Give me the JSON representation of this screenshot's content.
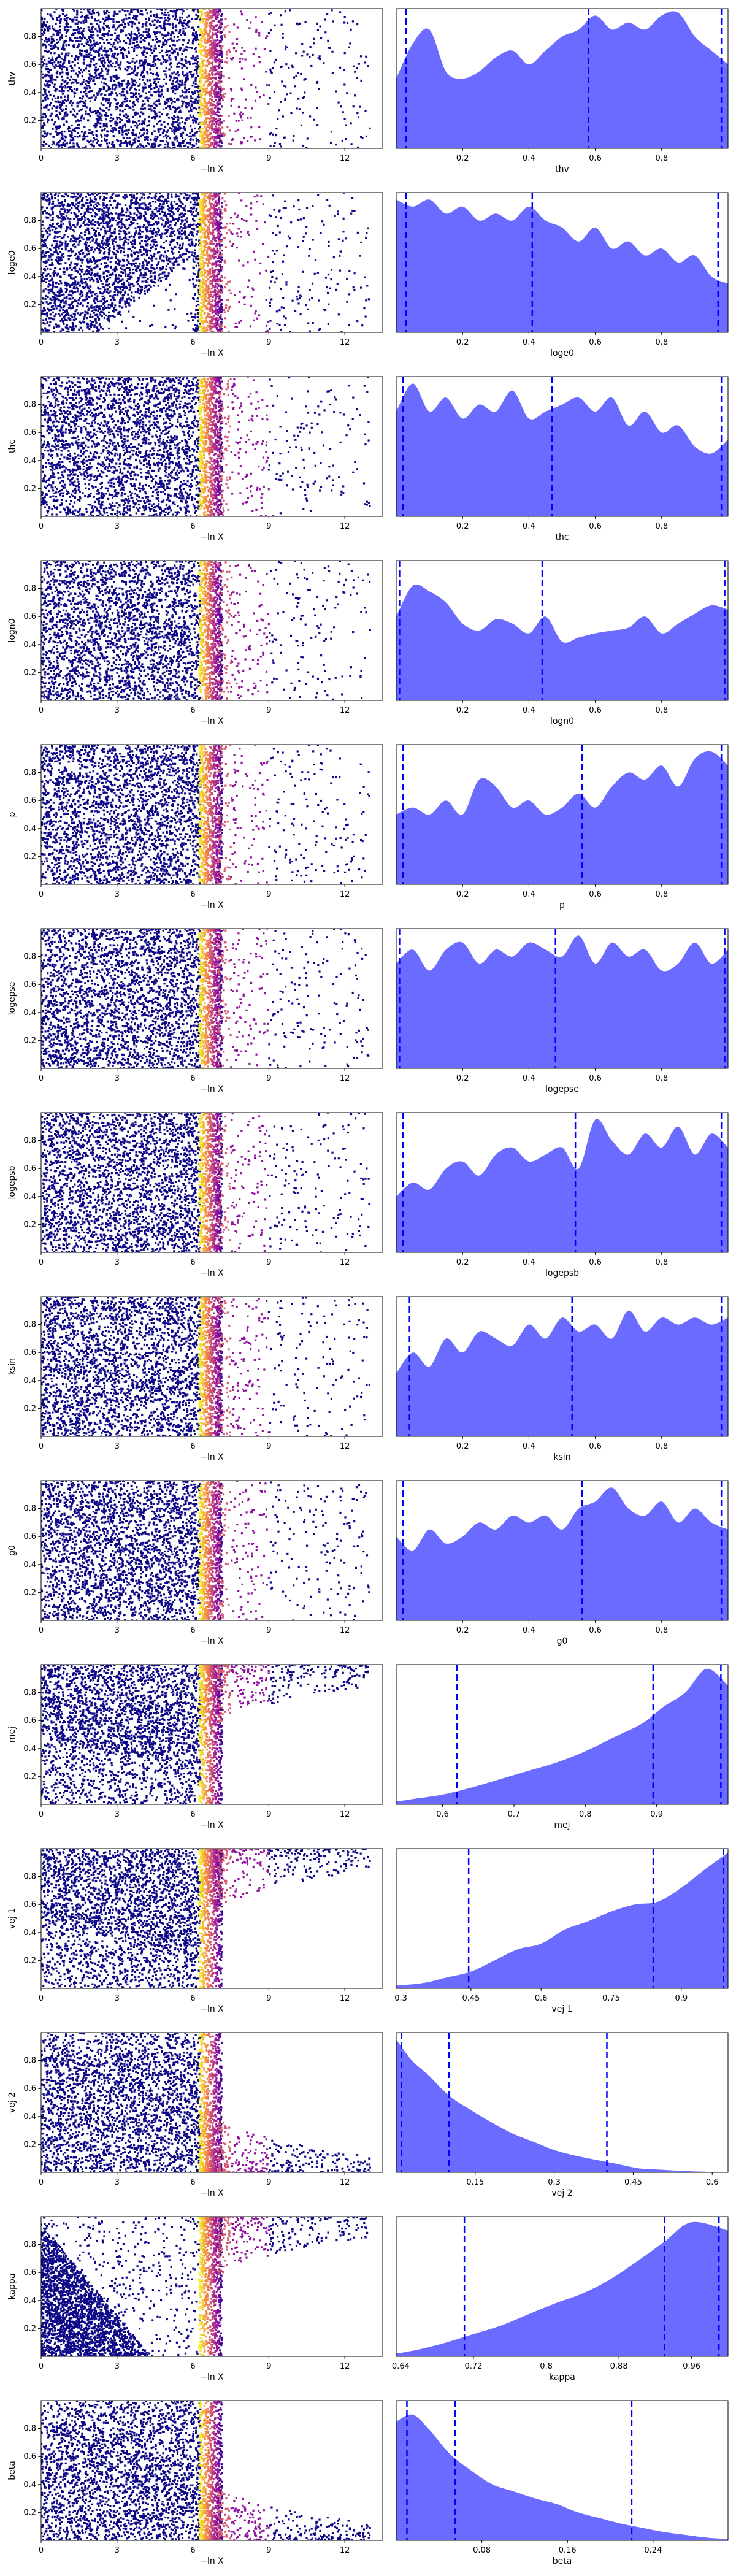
{
  "colors": {
    "scatter_low": "#0d0887",
    "scatter_high": "#f0f921",
    "kde_fill": "#6b6bff",
    "quantile_line": "#0000ff"
  },
  "chart_data": [
    {
      "type": "scatter",
      "xlabel": "−ln X",
      "ylabel": "thv",
      "xticks": [
        0,
        3,
        6,
        9,
        12
      ],
      "yticks": [
        0.2,
        0.4,
        0.6,
        0.8
      ],
      "xlim": [
        0,
        13.5
      ],
      "ylim": [
        0,
        1
      ],
      "pattern": "uniform",
      "colormap": "plasma"
    },
    {
      "type": "area",
      "xlabel": "thv",
      "xticks": [
        0.2,
        0.4,
        0.6,
        0.8
      ],
      "xlim": [
        0,
        1
      ],
      "x": [
        0,
        0.05,
        0.1,
        0.15,
        0.2,
        0.25,
        0.3,
        0.35,
        0.4,
        0.45,
        0.5,
        0.55,
        0.6,
        0.65,
        0.7,
        0.75,
        0.8,
        0.85,
        0.9,
        0.95,
        1
      ],
      "density": [
        0.5,
        0.75,
        0.85,
        0.55,
        0.5,
        0.55,
        0.65,
        0.7,
        0.6,
        0.7,
        0.8,
        0.85,
        0.95,
        0.85,
        0.9,
        0.85,
        0.95,
        0.97,
        0.8,
        0.7,
        0.6
      ],
      "quantiles": [
        0.03,
        0.58,
        0.98
      ]
    },
    {
      "type": "scatter",
      "xlabel": "−ln X",
      "ylabel": "loge0",
      "xticks": [
        0,
        3,
        6,
        9,
        12
      ],
      "yticks": [
        0.2,
        0.4,
        0.6,
        0.8
      ],
      "xlim": [
        0,
        13.5
      ],
      "ylim": [
        0,
        1
      ],
      "pattern": "gap_low",
      "colormap": "plasma"
    },
    {
      "type": "area",
      "xlabel": "loge0",
      "xticks": [
        0.2,
        0.4,
        0.6,
        0.8
      ],
      "xlim": [
        0,
        1
      ],
      "x": [
        0,
        0.05,
        0.1,
        0.15,
        0.2,
        0.25,
        0.3,
        0.35,
        0.4,
        0.45,
        0.5,
        0.55,
        0.6,
        0.65,
        0.7,
        0.75,
        0.8,
        0.85,
        0.9,
        0.95,
        1
      ],
      "density": [
        0.95,
        0.9,
        0.95,
        0.85,
        0.9,
        0.8,
        0.85,
        0.8,
        0.9,
        0.8,
        0.75,
        0.65,
        0.75,
        0.6,
        0.65,
        0.55,
        0.6,
        0.5,
        0.55,
        0.4,
        0.35
      ],
      "quantiles": [
        0.03,
        0.41,
        0.97
      ]
    },
    {
      "type": "scatter",
      "xlabel": "−ln X",
      "ylabel": "thc",
      "xticks": [
        0,
        3,
        6,
        9,
        12
      ],
      "yticks": [
        0.2,
        0.4,
        0.6,
        0.8
      ],
      "xlim": [
        0,
        13.5
      ],
      "ylim": [
        0,
        1
      ],
      "pattern": "uniform",
      "colormap": "plasma"
    },
    {
      "type": "area",
      "xlabel": "thc",
      "xticks": [
        0.2,
        0.4,
        0.6,
        0.8
      ],
      "xlim": [
        0,
        1
      ],
      "x": [
        0,
        0.05,
        0.1,
        0.15,
        0.2,
        0.25,
        0.3,
        0.35,
        0.4,
        0.45,
        0.5,
        0.55,
        0.6,
        0.65,
        0.7,
        0.75,
        0.8,
        0.85,
        0.9,
        0.95,
        1
      ],
      "density": [
        0.75,
        0.95,
        0.75,
        0.85,
        0.7,
        0.8,
        0.75,
        0.9,
        0.7,
        0.75,
        0.8,
        0.85,
        0.75,
        0.85,
        0.65,
        0.75,
        0.6,
        0.65,
        0.5,
        0.45,
        0.55
      ],
      "quantiles": [
        0.02,
        0.47,
        0.98
      ]
    },
    {
      "type": "scatter",
      "xlabel": "−ln X",
      "ylabel": "logn0",
      "xticks": [
        0,
        3,
        6,
        9,
        12
      ],
      "yticks": [
        0.2,
        0.4,
        0.6,
        0.8
      ],
      "xlim": [
        0,
        13.5
      ],
      "ylim": [
        0,
        1
      ],
      "pattern": "uniform",
      "colormap": "plasma"
    },
    {
      "type": "area",
      "xlabel": "logn0",
      "xticks": [
        0.2,
        0.4,
        0.6,
        0.8
      ],
      "xlim": [
        0,
        1
      ],
      "x": [
        0,
        0.05,
        0.1,
        0.15,
        0.2,
        0.25,
        0.3,
        0.35,
        0.4,
        0.45,
        0.5,
        0.55,
        0.6,
        0.65,
        0.7,
        0.75,
        0.8,
        0.85,
        0.9,
        0.95,
        1
      ],
      "density": [
        0.6,
        0.82,
        0.78,
        0.7,
        0.55,
        0.5,
        0.58,
        0.55,
        0.48,
        0.6,
        0.42,
        0.45,
        0.48,
        0.5,
        0.52,
        0.6,
        0.48,
        0.55,
        0.62,
        0.68,
        0.65
      ],
      "quantiles": [
        0.01,
        0.44,
        0.99
      ]
    },
    {
      "type": "scatter",
      "xlabel": "−ln X",
      "ylabel": "p",
      "xticks": [
        0,
        3,
        6,
        9,
        12
      ],
      "yticks": [
        0.2,
        0.4,
        0.6,
        0.8
      ],
      "xlim": [
        0,
        13.5
      ],
      "ylim": [
        0,
        1
      ],
      "pattern": "uniform",
      "colormap": "plasma"
    },
    {
      "type": "area",
      "xlabel": "p",
      "xticks": [
        0.2,
        0.4,
        0.6,
        0.8
      ],
      "xlim": [
        0,
        1
      ],
      "x": [
        0,
        0.05,
        0.1,
        0.15,
        0.2,
        0.25,
        0.3,
        0.35,
        0.4,
        0.45,
        0.5,
        0.55,
        0.6,
        0.65,
        0.7,
        0.75,
        0.8,
        0.85,
        0.9,
        0.95,
        1
      ],
      "density": [
        0.5,
        0.55,
        0.5,
        0.6,
        0.5,
        0.75,
        0.7,
        0.55,
        0.6,
        0.5,
        0.55,
        0.65,
        0.55,
        0.7,
        0.8,
        0.75,
        0.85,
        0.7,
        0.9,
        0.95,
        0.85
      ],
      "quantiles": [
        0.02,
        0.56,
        0.98
      ]
    },
    {
      "type": "scatter",
      "xlabel": "−ln X",
      "ylabel": "logepse",
      "xticks": [
        0,
        3,
        6,
        9,
        12
      ],
      "yticks": [
        0.2,
        0.4,
        0.6,
        0.8
      ],
      "xlim": [
        0,
        13.5
      ],
      "ylim": [
        0,
        1
      ],
      "pattern": "uniform",
      "colormap": "plasma"
    },
    {
      "type": "area",
      "xlabel": "logepse",
      "xticks": [
        0.2,
        0.4,
        0.6,
        0.8
      ],
      "xlim": [
        0,
        1
      ],
      "x": [
        0,
        0.05,
        0.1,
        0.15,
        0.2,
        0.25,
        0.3,
        0.35,
        0.4,
        0.45,
        0.5,
        0.55,
        0.6,
        0.65,
        0.7,
        0.75,
        0.8,
        0.85,
        0.9,
        0.95,
        1
      ],
      "density": [
        0.75,
        0.85,
        0.7,
        0.85,
        0.9,
        0.75,
        0.85,
        0.8,
        0.9,
        0.85,
        0.8,
        0.95,
        0.75,
        0.9,
        0.8,
        0.85,
        0.7,
        0.75,
        0.9,
        0.75,
        0.85
      ],
      "quantiles": [
        0.01,
        0.48,
        0.99
      ]
    },
    {
      "type": "scatter",
      "xlabel": "−ln X",
      "ylabel": "logepsb",
      "xticks": [
        0,
        3,
        6,
        9,
        12
      ],
      "yticks": [
        0.2,
        0.4,
        0.6,
        0.8
      ],
      "xlim": [
        0,
        13.5
      ],
      "ylim": [
        0,
        1
      ],
      "pattern": "uniform",
      "colormap": "plasma"
    },
    {
      "type": "area",
      "xlabel": "logepsb",
      "xticks": [
        0.2,
        0.4,
        0.6,
        0.8
      ],
      "xlim": [
        0,
        1
      ],
      "x": [
        0,
        0.05,
        0.1,
        0.15,
        0.2,
        0.25,
        0.3,
        0.35,
        0.4,
        0.45,
        0.5,
        0.55,
        0.6,
        0.65,
        0.7,
        0.75,
        0.8,
        0.85,
        0.9,
        0.95,
        1
      ],
      "density": [
        0.4,
        0.5,
        0.45,
        0.6,
        0.65,
        0.55,
        0.7,
        0.75,
        0.65,
        0.7,
        0.75,
        0.6,
        0.95,
        0.8,
        0.7,
        0.85,
        0.75,
        0.9,
        0.7,
        0.85,
        0.75
      ],
      "quantiles": [
        0.02,
        0.54,
        0.98
      ]
    },
    {
      "type": "scatter",
      "xlabel": "−ln X",
      "ylabel": "ksin",
      "xticks": [
        0,
        3,
        6,
        9,
        12
      ],
      "yticks": [
        0.2,
        0.4,
        0.6,
        0.8
      ],
      "xlim": [
        0,
        13.5
      ],
      "ylim": [
        0,
        1
      ],
      "pattern": "uniform",
      "colormap": "plasma"
    },
    {
      "type": "area",
      "xlabel": "ksin",
      "xticks": [
        0.2,
        0.4,
        0.6,
        0.8
      ],
      "xlim": [
        0,
        1
      ],
      "x": [
        0,
        0.05,
        0.1,
        0.15,
        0.2,
        0.25,
        0.3,
        0.35,
        0.4,
        0.45,
        0.5,
        0.55,
        0.6,
        0.65,
        0.7,
        0.75,
        0.8,
        0.85,
        0.9,
        0.95,
        1
      ],
      "density": [
        0.45,
        0.6,
        0.5,
        0.7,
        0.6,
        0.75,
        0.7,
        0.65,
        0.8,
        0.7,
        0.85,
        0.75,
        0.8,
        0.7,
        0.9,
        0.75,
        0.85,
        0.8,
        0.85,
        0.8,
        0.85
      ],
      "quantiles": [
        0.04,
        0.53,
        0.98
      ]
    },
    {
      "type": "scatter",
      "xlabel": "−ln X",
      "ylabel": "g0",
      "xticks": [
        0,
        3,
        6,
        9,
        12
      ],
      "yticks": [
        0.2,
        0.4,
        0.6,
        0.8
      ],
      "xlim": [
        0,
        13.5
      ],
      "ylim": [
        0,
        1
      ],
      "pattern": "uniform",
      "colormap": "plasma"
    },
    {
      "type": "area",
      "xlabel": "g0",
      "xticks": [
        0.2,
        0.4,
        0.6,
        0.8
      ],
      "xlim": [
        0,
        1
      ],
      "x": [
        0,
        0.05,
        0.1,
        0.15,
        0.2,
        0.25,
        0.3,
        0.35,
        0.4,
        0.45,
        0.5,
        0.55,
        0.6,
        0.65,
        0.7,
        0.75,
        0.8,
        0.85,
        0.9,
        0.95,
        1
      ],
      "density": [
        0.6,
        0.5,
        0.65,
        0.55,
        0.6,
        0.7,
        0.65,
        0.75,
        0.7,
        0.75,
        0.65,
        0.8,
        0.85,
        0.95,
        0.8,
        0.75,
        0.85,
        0.7,
        0.8,
        0.7,
        0.65
      ],
      "quantiles": [
        0.02,
        0.56,
        0.98
      ]
    },
    {
      "type": "scatter",
      "xlabel": "−ln X",
      "ylabel": "mej",
      "xticks": [
        0,
        3,
        6,
        9,
        12
      ],
      "yticks": [
        0.2,
        0.4,
        0.6,
        0.8
      ],
      "xlim": [
        0,
        13.5
      ],
      "ylim": [
        0,
        1
      ],
      "pattern": "high_tail",
      "colormap": "plasma"
    },
    {
      "type": "area",
      "xlabel": "mej",
      "xticks": [
        0.6,
        0.7,
        0.8,
        0.9
      ],
      "xlim": [
        0.535,
        1.0
      ],
      "x": [
        0.535,
        0.56,
        0.6,
        0.64,
        0.68,
        0.72,
        0.76,
        0.8,
        0.84,
        0.88,
        0.91,
        0.94,
        0.97,
        1.0
      ],
      "density": [
        0.02,
        0.04,
        0.07,
        0.12,
        0.18,
        0.24,
        0.3,
        0.38,
        0.48,
        0.58,
        0.7,
        0.8,
        0.97,
        0.85
      ],
      "quantiles": [
        0.62,
        0.895,
        0.99
      ]
    },
    {
      "type": "scatter",
      "xlabel": "−ln X",
      "ylabel": "vej 1",
      "xticks": [
        0,
        3,
        6,
        9,
        12
      ],
      "yticks": [
        0.2,
        0.4,
        0.6,
        0.8
      ],
      "xlim": [
        0,
        13.5
      ],
      "ylim": [
        0,
        1
      ],
      "pattern": "high_tail",
      "colormap": "plasma"
    },
    {
      "type": "area",
      "xlabel": "vej 1",
      "xticks": [
        0.3,
        0.45,
        0.6,
        0.75,
        0.9
      ],
      "xlim": [
        0.29,
        1.0
      ],
      "x": [
        0.29,
        0.35,
        0.4,
        0.45,
        0.5,
        0.55,
        0.6,
        0.65,
        0.7,
        0.75,
        0.8,
        0.85,
        0.9,
        0.95,
        1.0
      ],
      "density": [
        0.02,
        0.04,
        0.08,
        0.12,
        0.2,
        0.28,
        0.32,
        0.42,
        0.48,
        0.55,
        0.6,
        0.62,
        0.72,
        0.85,
        0.97
      ],
      "quantiles": [
        0.445,
        0.84,
        0.99
      ]
    },
    {
      "type": "scatter",
      "xlabel": "−ln X",
      "ylabel": "vej 2",
      "xticks": [
        0,
        3,
        6,
        9,
        12
      ],
      "yticks": [
        0.2,
        0.4,
        0.6,
        0.8
      ],
      "xlim": [
        0,
        13.5
      ],
      "ylim": [
        0,
        1
      ],
      "pattern": "low_tail",
      "colormap": "plasma"
    },
    {
      "type": "area",
      "xlabel": "vej 2",
      "xticks": [
        0.15,
        0.3,
        0.45,
        0.6
      ],
      "xlim": [
        0.0,
        0.63
      ],
      "x": [
        0.0,
        0.03,
        0.06,
        0.1,
        0.14,
        0.18,
        0.22,
        0.26,
        0.3,
        0.34,
        0.38,
        0.42,
        0.46,
        0.5,
        0.55,
        0.63
      ],
      "density": [
        0.95,
        0.8,
        0.7,
        0.55,
        0.45,
        0.36,
        0.28,
        0.22,
        0.16,
        0.12,
        0.09,
        0.06,
        0.03,
        0.02,
        0.01,
        0.0
      ],
      "quantiles": [
        0.01,
        0.1,
        0.4
      ]
    },
    {
      "type": "scatter",
      "xlabel": "−ln X",
      "ylabel": "kappa",
      "xticks": [
        0,
        3,
        6,
        9,
        12
      ],
      "yticks": [
        0.2,
        0.4,
        0.6,
        0.8
      ],
      "xlim": [
        0,
        13.5
      ],
      "ylim": [
        0,
        1
      ],
      "pattern": "high_tail_curve",
      "colormap": "plasma"
    },
    {
      "type": "area",
      "xlabel": "kappa",
      "xticks": [
        0.64,
        0.72,
        0.8,
        0.88,
        0.96
      ],
      "xlim": [
        0.635,
        1.0
      ],
      "x": [
        0.635,
        0.66,
        0.69,
        0.72,
        0.75,
        0.78,
        0.81,
        0.84,
        0.87,
        0.9,
        0.93,
        0.96,
        1.0
      ],
      "density": [
        0.02,
        0.05,
        0.1,
        0.16,
        0.22,
        0.3,
        0.38,
        0.45,
        0.55,
        0.68,
        0.82,
        0.96,
        0.9
      ],
      "quantiles": [
        0.71,
        0.93,
        0.99
      ]
    },
    {
      "type": "scatter",
      "xlabel": "−ln X",
      "ylabel": "beta",
      "xticks": [
        0,
        3,
        6,
        9,
        12
      ],
      "yticks": [
        0.2,
        0.4,
        0.6,
        0.8
      ],
      "xlim": [
        0,
        13.5
      ],
      "ylim": [
        0,
        1
      ],
      "pattern": "low_tail",
      "colormap": "plasma"
    },
    {
      "type": "area",
      "xlabel": "beta",
      "xticks": [
        0.08,
        0.16,
        0.24
      ],
      "xlim": [
        0.0,
        0.31
      ],
      "x": [
        0.0,
        0.015,
        0.03,
        0.05,
        0.07,
        0.09,
        0.11,
        0.13,
        0.15,
        0.17,
        0.19,
        0.21,
        0.23,
        0.25,
        0.27,
        0.29,
        0.31
      ],
      "density": [
        0.85,
        0.9,
        0.8,
        0.62,
        0.5,
        0.4,
        0.35,
        0.3,
        0.26,
        0.2,
        0.16,
        0.12,
        0.09,
        0.06,
        0.04,
        0.02,
        0.01
      ],
      "quantiles": [
        0.01,
        0.055,
        0.22
      ]
    }
  ]
}
